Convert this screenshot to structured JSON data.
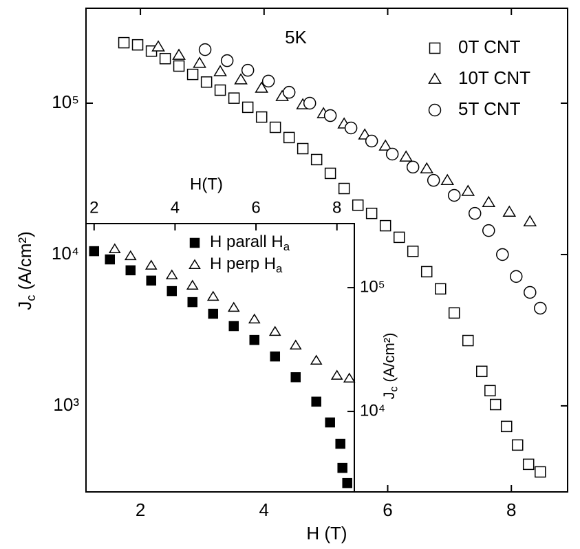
{
  "chart_data": [
    {
      "type": "scatter",
      "xlabel": "H (T)",
      "ylabel": "Jc (A/cm²)",
      "annotation": "5K",
      "log_y": true,
      "legend": "upper right",
      "xlim": [
        1.12,
        8.91
      ],
      "xticks": [
        2,
        4,
        6,
        8
      ],
      "ylim": [
        270,
        424000
      ],
      "yticks": [
        {
          "value": 1000,
          "label": "10³"
        },
        {
          "value": 10000,
          "label": "10⁴"
        },
        {
          "value": 100000,
          "label": "10⁵"
        }
      ],
      "series": [
        {
          "name": "0T CNT",
          "marker": "square",
          "color": "#000000",
          "filled": false,
          "x": [
            1.733,
            1.955,
            2.178,
            2.401,
            2.623,
            2.846,
            3.069,
            3.291,
            3.514,
            3.737,
            3.96,
            4.182,
            4.405,
            4.627,
            4.85,
            5.072,
            5.295,
            5.518,
            5.74,
            5.963,
            6.186,
            6.408,
            6.631,
            6.854,
            7.076,
            7.299,
            7.522,
            7.656,
            7.744,
            7.922,
            8.1,
            8.278,
            8.468
          ],
          "values": [
            251000,
            243000,
            221000,
            197000,
            176000,
            155000,
            138000,
            122000,
            108000,
            94000,
            81000,
            69300,
            59300,
            50100,
            42400,
            34400,
            27300,
            21200,
            18700,
            15500,
            13000,
            10500,
            7700,
            5930,
            4110,
            2700,
            1690,
            1260,
            1020,
            731,
            551,
            411,
            366
          ]
        },
        {
          "name": "10T CNT",
          "marker": "triangle",
          "color": "#000000",
          "filled": false,
          "x": [
            2.289,
            2.623,
            2.957,
            3.291,
            3.625,
            3.96,
            4.293,
            4.627,
            4.961,
            5.295,
            5.629,
            5.963,
            6.297,
            6.631,
            6.965,
            7.299,
            7.633,
            7.967,
            8.301
          ],
          "values": [
            236000,
            208000,
            184000,
            162000,
            143000,
            126000,
            111000,
            97900,
            85500,
            73100,
            61800,
            52200,
            44200,
            36900,
            30900,
            26200,
            22100,
            19100,
            16500
          ]
        },
        {
          "name": "5T CNT",
          "marker": "circle",
          "color": "#000000",
          "filled": false,
          "x": [
            3.046,
            3.403,
            3.737,
            4.071,
            4.405,
            4.739,
            5.072,
            5.406,
            5.74,
            6.074,
            6.408,
            6.742,
            7.076,
            7.41,
            7.633,
            7.856,
            8.078,
            8.301,
            8.468
          ],
          "values": [
            226000,
            191000,
            165000,
            140000,
            118000,
            100000,
            82800,
            68600,
            56200,
            46100,
            37800,
            30900,
            24600,
            18700,
            14400,
            10000,
            7160,
            5620,
            4420
          ]
        }
      ]
    },
    {
      "type": "scatter",
      "xlabel": "H(T)",
      "ylabel": "Jc (A/cm²)",
      "log_y": true,
      "legend": "upper right",
      "xlim": [
        1.8,
        8.43
      ],
      "xticks": [
        2,
        4,
        6,
        8
      ],
      "ylim": [
        2240,
        329000
      ],
      "yticks": [
        {
          "value": 10000,
          "label": "10⁴"
        },
        {
          "value": 100000,
          "label": "10⁵"
        }
      ],
      "series": [
        {
          "name": "H parall Ha",
          "marker": "square",
          "color": "#000000",
          "filled": true,
          "x": [
            2.0,
            2.391,
            2.901,
            3.411,
            3.921,
            4.431,
            4.941,
            5.451,
            5.961,
            6.471,
            6.981,
            7.49,
            7.83,
            8.085,
            8.136,
            8.255
          ],
          "values": [
            197000,
            169000,
            138000,
            114000,
            93800,
            76400,
            61500,
            48900,
            37800,
            27800,
            18900,
            12000,
            8150,
            5480,
            3500,
            2640
          ]
        },
        {
          "name": "H perp Ha",
          "marker": "triangle",
          "color": "#000000",
          "filled": false,
          "x": [
            2.51,
            2.901,
            3.411,
            3.921,
            4.431,
            4.941,
            5.451,
            5.961,
            6.471,
            6.981,
            7.49,
            8.0,
            8.306
          ],
          "values": [
            205000,
            180000,
            151000,
            126000,
            104000,
            84700,
            69000,
            55500,
            44100,
            34200,
            25800,
            19500,
            18500
          ]
        }
      ]
    }
  ]
}
